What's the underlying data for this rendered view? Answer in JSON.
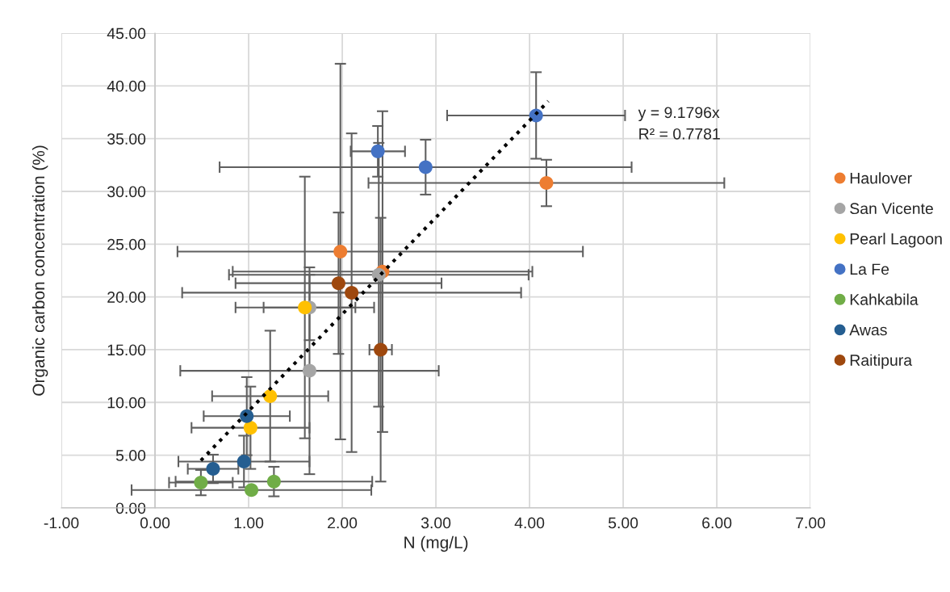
{
  "chart_data": {
    "type": "scatter",
    "xlabel": "N (mg/L)",
    "ylabel": "Organic carbon concentration (%)",
    "xlim": [
      -1,
      7
    ],
    "ylim": [
      0,
      45
    ],
    "xticks": [
      {
        "value": -1,
        "label": "-1.00"
      },
      {
        "value": 0,
        "label": "0.00"
      },
      {
        "value": 1,
        "label": "1.00"
      },
      {
        "value": 2,
        "label": "2.00"
      },
      {
        "value": 3,
        "label": "3.00"
      },
      {
        "value": 4,
        "label": "4.00"
      },
      {
        "value": 5,
        "label": "5.00"
      },
      {
        "value": 6,
        "label": "6.00"
      },
      {
        "value": 7,
        "label": "7.00"
      }
    ],
    "yticks": [
      {
        "value": 0,
        "label": "0.00"
      },
      {
        "value": 5,
        "label": "5.00"
      },
      {
        "value": 10,
        "label": "10.00"
      },
      {
        "value": 15,
        "label": "15.00"
      },
      {
        "value": 20,
        "label": "20.00"
      },
      {
        "value": 25,
        "label": "25.00"
      },
      {
        "value": 30,
        "label": "30.00"
      },
      {
        "value": 35,
        "label": "35.00"
      },
      {
        "value": 40,
        "label": "40.00"
      },
      {
        "value": 45,
        "label": "45.00"
      }
    ],
    "grid": true,
    "legend": "right",
    "marker": "circle",
    "annotations": [
      "y = 9.1796x",
      "R² = 0.7781"
    ],
    "series": [
      {
        "name": "Haulover",
        "color": "#ed7d31",
        "x": [
          4.18,
          1.98,
          2.43
        ],
        "values": [
          30.8,
          24.3,
          22.4
        ],
        "xerrors": [
          1.9,
          [
            0.24,
            4.57
          ],
          1.6
        ],
        "errors": [
          2.2,
          17.8,
          15.2
        ]
      },
      {
        "name": "San Vicente",
        "color": "#a5a5a5",
        "x": [
          2.39,
          1.65,
          1.65
        ],
        "values": [
          22.1,
          19.0,
          13.0
        ],
        "xerrors": [
          1.6,
          0.49,
          1.38
        ],
        "errors": [
          12.5,
          3.1,
          9.8
        ]
      },
      {
        "name": "Pearl Lagoon",
        "color": "#ffc000",
        "x": [
          1.6,
          1.23,
          1.02
        ],
        "values": [
          19.0,
          10.6,
          7.6
        ],
        "xerrors": [
          0.74,
          0.62,
          0.63
        ],
        "errors": [
          12.4,
          6.2,
          3.9
        ]
      },
      {
        "name": "La Fe",
        "color": "#4472c4",
        "x": [
          4.07,
          2.38,
          2.89
        ],
        "values": [
          37.2,
          33.8,
          32.3
        ],
        "xerrors": [
          0.95,
          0.29,
          2.2
        ],
        "errors": [
          4.1,
          2.4,
          2.6
        ]
      },
      {
        "name": "Kahkabila",
        "color": "#70ad47",
        "x": [
          0.49,
          1.03,
          1.27
        ],
        "values": [
          2.4,
          1.7,
          2.5
        ],
        "xerrors": [
          0.34,
          1.28,
          1.05
        ],
        "errors": [
          1.2,
          null,
          1.4
        ]
      },
      {
        "name": "Awas",
        "color": "#255e91",
        "x": [
          0.62,
          0.95,
          0.98
        ],
        "values": [
          3.7,
          4.4,
          8.7
        ],
        "xerrors": [
          0.27,
          0.7,
          0.46
        ],
        "errors": [
          1.35,
          2.45,
          3.7
        ]
      },
      {
        "name": "Raitipura",
        "color": "#9e480e",
        "x": [
          1.96,
          2.1,
          2.41
        ],
        "values": [
          21.3,
          20.4,
          15.0
        ],
        "xerrors": [
          1.1,
          1.81,
          0.12
        ],
        "errors": [
          6.7,
          15.1,
          12.5
        ]
      },
      {
        "type": "line",
        "color": "#000000",
        "x": [
          0.49,
          4.2
        ],
        "values": [
          4.5,
          38.55
        ],
        "line_style": "dotted",
        "marker": "none"
      }
    ]
  }
}
